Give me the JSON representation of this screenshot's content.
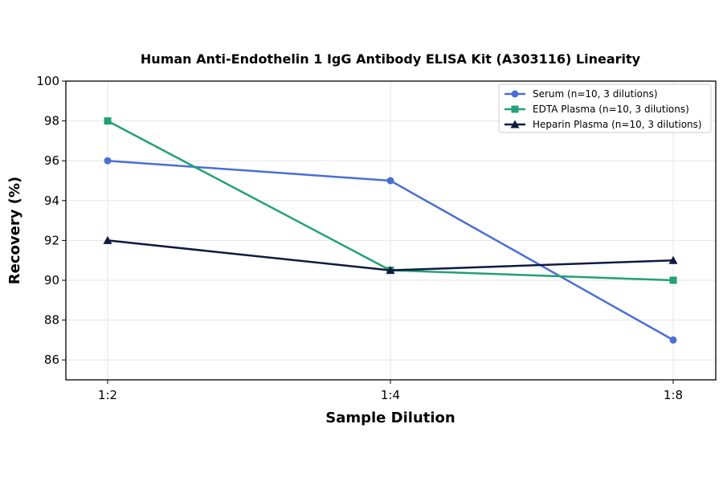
{
  "chart_data": {
    "type": "line",
    "title": "Human Anti-Endothelin 1 IgG Antibody ELISA Kit (A303116) Linearity",
    "xlabel": "Sample Dilution",
    "ylabel": "Recovery (%)",
    "categories": [
      "1:2",
      "1:4",
      "1:8"
    ],
    "ylim": [
      85,
      100
    ],
    "yticks": [
      86,
      88,
      90,
      92,
      94,
      96,
      98,
      100
    ],
    "grid": true,
    "legend_position": "top-right",
    "series": [
      {
        "name": "Serum (n=10, 3 dilutions)",
        "values": [
          96,
          95,
          87
        ],
        "color": "#4a6fd4",
        "marker": "circle"
      },
      {
        "name": "EDTA Plasma (n=10, 3 dilutions)",
        "values": [
          98,
          90.5,
          90
        ],
        "color": "#23a075",
        "marker": "square"
      },
      {
        "name": "Heparin Plasma (n=10, 3 dilutions)",
        "values": [
          92,
          90.5,
          91
        ],
        "color": "#0e1a40",
        "marker": "triangle"
      }
    ]
  }
}
